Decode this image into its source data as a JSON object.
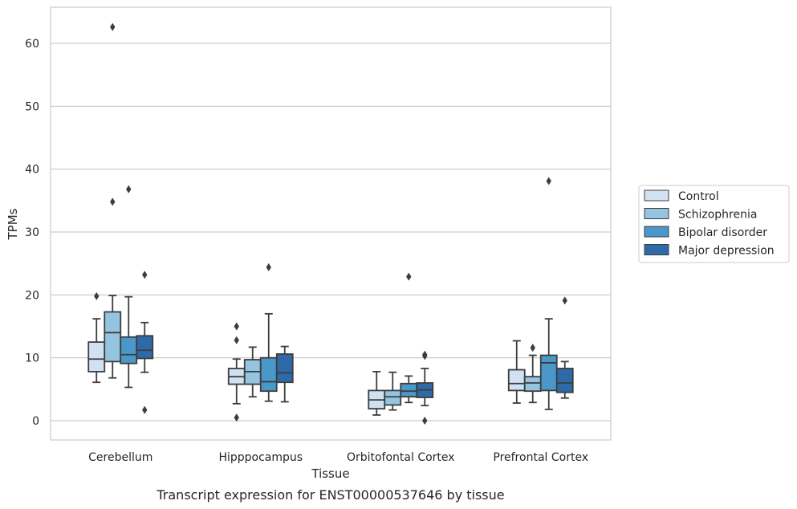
{
  "caption": "Transcript expression for ENST00000537646 by tissue",
  "chart_data": {
    "type": "box",
    "title": "",
    "xlabel": "Tissue",
    "ylabel": "TPMs",
    "ylim": [
      -3,
      66
    ],
    "yticks": [
      0,
      10,
      20,
      30,
      40,
      50,
      60
    ],
    "grid": "horizontal",
    "legend_position": "right",
    "categories": [
      "Cerebellum",
      "Hipppocampus",
      "Orbitofontal Cortex",
      "Prefrontal Cortex"
    ],
    "series": [
      {
        "name": "Control",
        "color": "#d0e1f2",
        "boxes": [
          {
            "whislo": 6.1,
            "q1": 7.8,
            "med": 9.8,
            "q3": 12.5,
            "whishi": 16.2,
            "fliers": [
              19.8
            ]
          },
          {
            "whislo": 2.7,
            "q1": 5.8,
            "med": 7.0,
            "q3": 8.3,
            "whishi": 9.8,
            "fliers": [
              15.0,
              12.8,
              0.5
            ]
          },
          {
            "whislo": 0.9,
            "q1": 1.9,
            "med": 3.3,
            "q3": 4.8,
            "whishi": 7.8,
            "fliers": []
          },
          {
            "whislo": 2.8,
            "q1": 4.8,
            "med": 5.9,
            "q3": 8.1,
            "whishi": 12.7,
            "fliers": []
          }
        ]
      },
      {
        "name": "Schizophrenia",
        "color": "#94c4df",
        "boxes": [
          {
            "whislo": 6.8,
            "q1": 9.4,
            "med": 14.0,
            "q3": 17.3,
            "whishi": 19.9,
            "fliers": [
              62.6,
              34.8
            ]
          },
          {
            "whislo": 3.8,
            "q1": 5.8,
            "med": 7.8,
            "q3": 9.7,
            "whishi": 11.7,
            "fliers": []
          },
          {
            "whislo": 1.7,
            "q1": 2.5,
            "med": 3.8,
            "q3": 4.8,
            "whishi": 7.7,
            "fliers": []
          },
          {
            "whislo": 2.9,
            "q1": 4.7,
            "med": 6.0,
            "q3": 7.0,
            "whishi": 10.4,
            "fliers": [
              11.6
            ]
          }
        ]
      },
      {
        "name": "Bipolar disorder",
        "color": "#4a98c9",
        "boxes": [
          {
            "whislo": 5.3,
            "q1": 9.1,
            "med": 10.5,
            "q3": 13.3,
            "whishi": 19.7,
            "fliers": [
              36.8
            ]
          },
          {
            "whislo": 3.1,
            "q1": 4.7,
            "med": 6.2,
            "q3": 10.0,
            "whishi": 17.0,
            "fliers": [
              24.4
            ]
          },
          {
            "whislo": 2.9,
            "q1": 3.8,
            "med": 4.7,
            "q3": 5.9,
            "whishi": 7.1,
            "fliers": [
              22.9
            ]
          },
          {
            "whislo": 1.8,
            "q1": 4.8,
            "med": 9.2,
            "q3": 10.4,
            "whishi": 16.2,
            "fliers": [
              38.1
            ]
          }
        ]
      },
      {
        "name": "Major depression",
        "color": "#2e69a8",
        "boxes": [
          {
            "whislo": 7.7,
            "q1": 9.9,
            "med": 11.2,
            "q3": 13.5,
            "whishi": 15.6,
            "fliers": [
              23.2,
              1.7
            ]
          },
          {
            "whislo": 3.0,
            "q1": 6.1,
            "med": 7.6,
            "q3": 10.6,
            "whishi": 11.8,
            "fliers": []
          },
          {
            "whislo": 2.4,
            "q1": 3.7,
            "med": 4.9,
            "q3": 6.0,
            "whishi": 8.3,
            "fliers": [
              10.5,
              10.3,
              0.0
            ]
          },
          {
            "whislo": 3.6,
            "q1": 4.5,
            "med": 6.0,
            "q3": 8.3,
            "whishi": 9.4,
            "fliers": [
              19.1
            ]
          }
        ]
      }
    ]
  }
}
